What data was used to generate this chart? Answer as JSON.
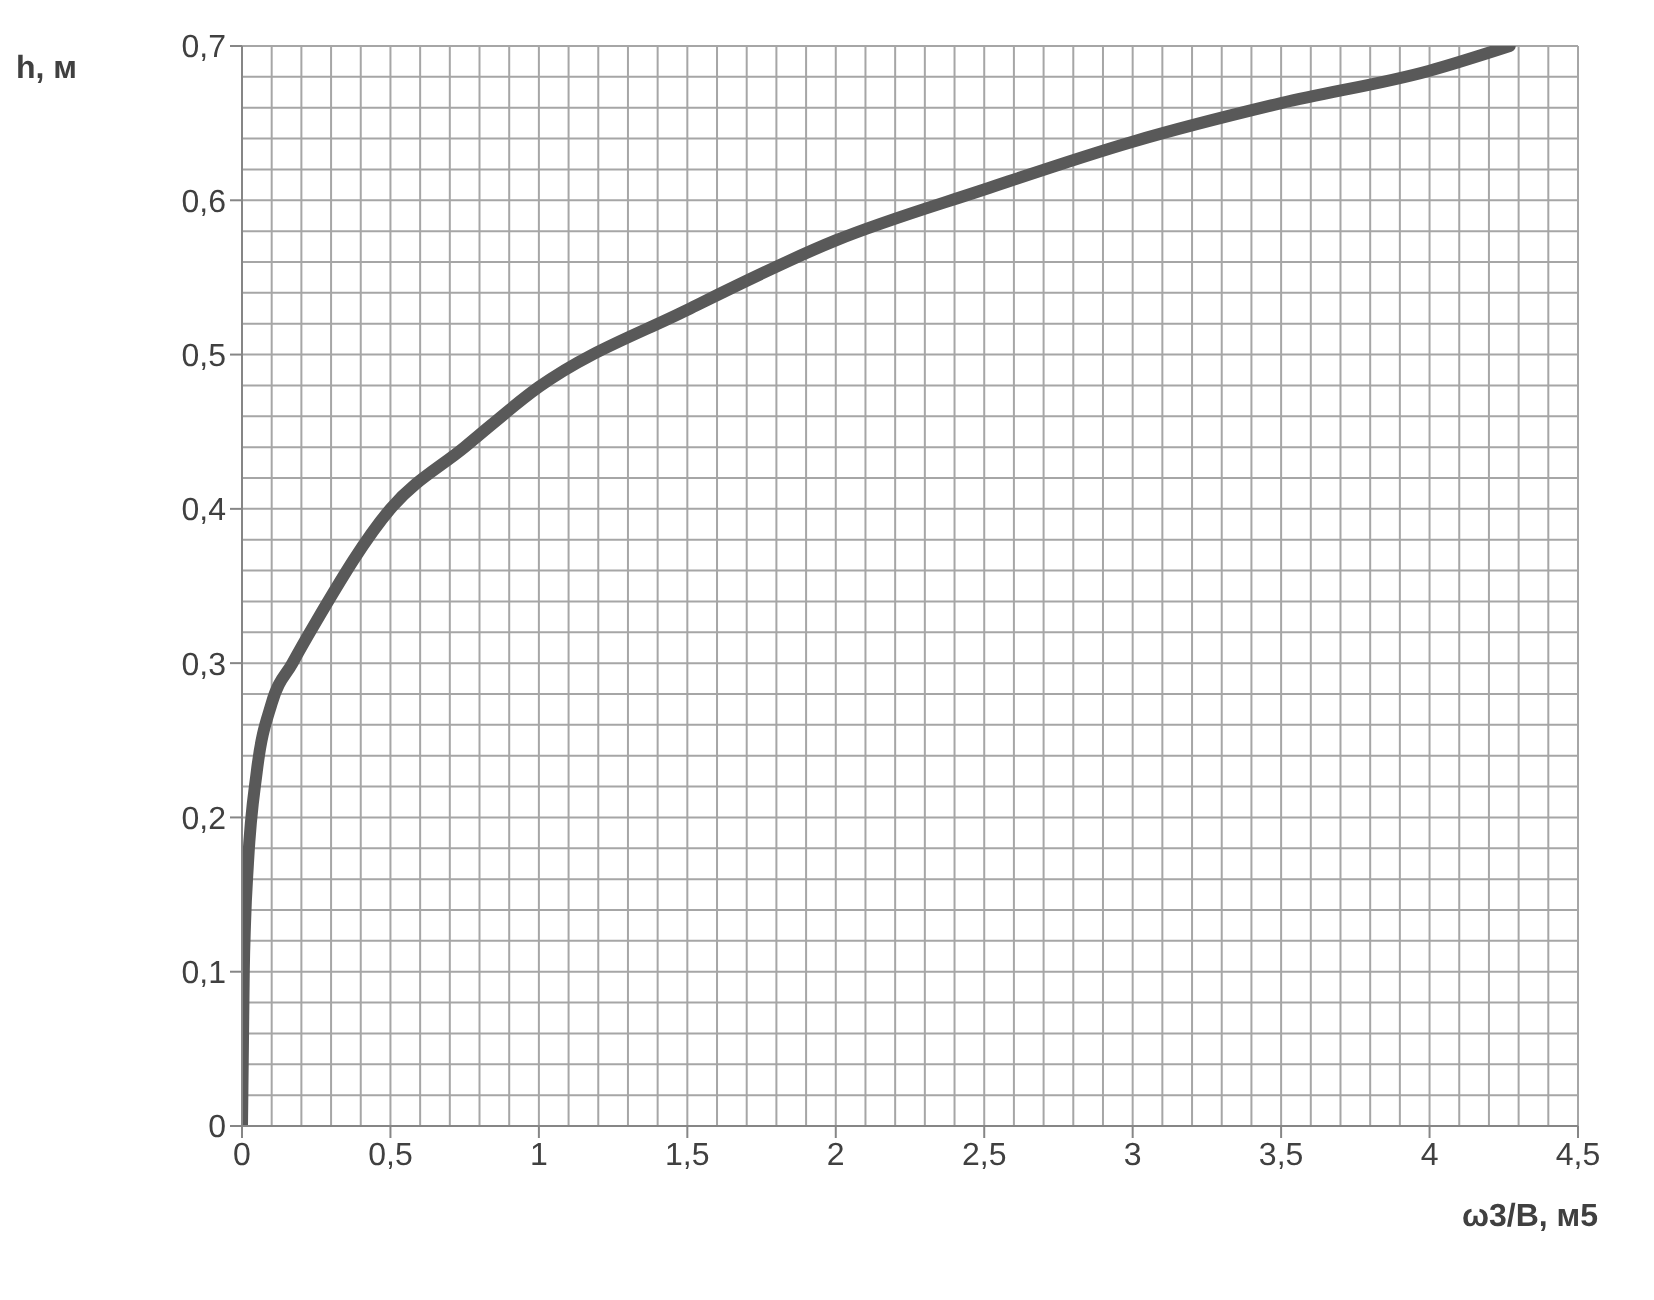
{
  "chart_data": {
    "type": "line",
    "xlabel": "ω3/В, м5",
    "ylabel": "h, м",
    "x": [
      0,
      0.003,
      0.006,
      0.01,
      0.02,
      0.05,
      0.1,
      0.17,
      0.25,
      0.5,
      0.75,
      1,
      1.5,
      2,
      2.5,
      3,
      3.5,
      4,
      4.27
    ],
    "series": [
      {
        "color": "#595959",
        "values": [
          0,
          0.05,
          0.1,
          0.13,
          0.17,
          0.23,
          0.274,
          0.3,
          0.327,
          0.4,
          0.44,
          0.479,
          0.529,
          0.574,
          0.607,
          0.638,
          0.663,
          0.684,
          0.7
        ]
      }
    ],
    "xlim": [
      0,
      4.5
    ],
    "ylim": [
      0,
      0.7
    ],
    "xticks": [
      0,
      {
        "value": 0.5,
        "label": "0,5"
      },
      1,
      {
        "value": 1.5,
        "label": "1,5"
      },
      2,
      {
        "value": 2.5,
        "label": "2,5"
      },
      3,
      {
        "value": 3.5,
        "label": "3,5"
      },
      4,
      {
        "value": 4.5,
        "label": "4,5"
      }
    ],
    "yticks": [
      0,
      {
        "value": 0.1,
        "label": "0,1"
      },
      {
        "value": 0.2,
        "label": "0,2"
      },
      {
        "value": 0.3,
        "label": "0,3"
      },
      {
        "value": 0.4,
        "label": "0,4"
      },
      {
        "value": 0.5,
        "label": "0,5"
      },
      {
        "value": 0.6,
        "label": "0,6"
      },
      {
        "value": 0.7,
        "label": "0,7"
      }
    ],
    "grid": true,
    "marker": "none",
    "line_style": "solid"
  }
}
